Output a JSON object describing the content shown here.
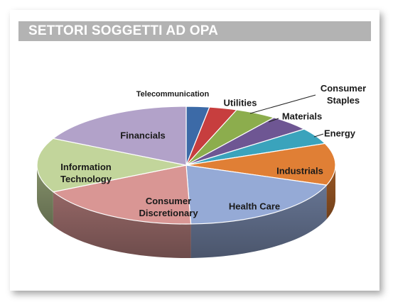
{
  "header": {
    "title": "SETTORI SOGGETTI AD OPA"
  },
  "chart_data": {
    "type": "pie",
    "style": "3d",
    "legend": "none",
    "title": "SETTORI SOGGETTI AD OPA",
    "slices": [
      {
        "label": [
          "Telecommunication"
        ],
        "value": 2.5,
        "color": "#3c6aa7"
      },
      {
        "label": [
          "Utilities"
        ],
        "value": 3.0,
        "color": "#c73e3e"
      },
      {
        "label": [
          "Consumer",
          "Staples"
        ],
        "value": 4.5,
        "color": "#8cad4d"
      },
      {
        "label": [
          "Materials"
        ],
        "value": 4.5,
        "color": "#6e5693"
      },
      {
        "label": [
          "Energy"
        ],
        "value": 4.5,
        "color": "#3aa3bc"
      },
      {
        "label": [
          "Industrials"
        ],
        "value": 11.5,
        "color": "#e07f35"
      },
      {
        "label": [
          "Health Care"
        ],
        "value": 19.0,
        "color": "#95aad6"
      },
      {
        "label": [
          "Consumer",
          "Discretionary"
        ],
        "value": 18.0,
        "color": "#d99694"
      },
      {
        "label": [
          "Information",
          "Technology"
        ],
        "value": 15.0,
        "color": "#c2d59b"
      },
      {
        "label": [
          "Financials"
        ],
        "value": 17.5,
        "color": "#b2a2c9"
      }
    ]
  }
}
